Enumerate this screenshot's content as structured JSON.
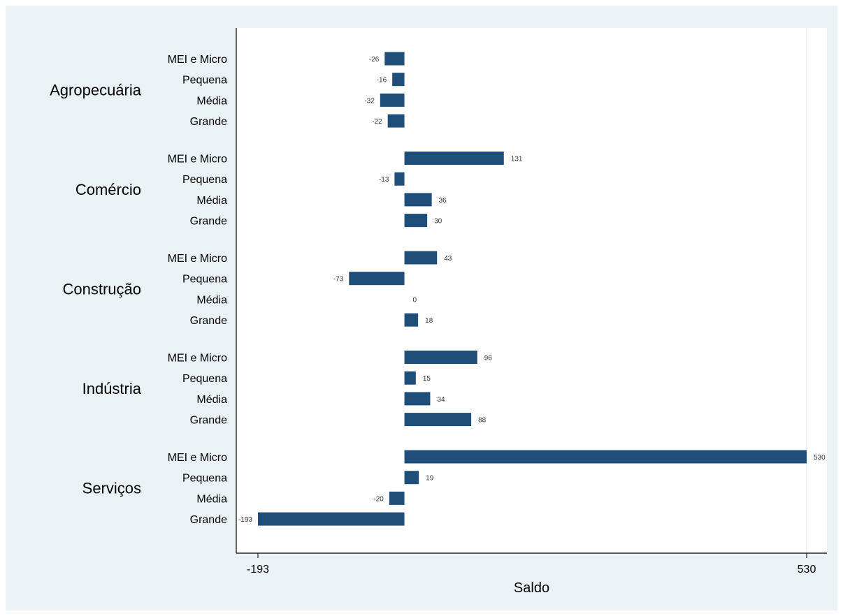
{
  "chart_data": {
    "type": "bar",
    "orientation": "horizontal",
    "xlabel": "Saldo",
    "xlim": [
      -193,
      530
    ],
    "xticks": [
      -193,
      530
    ],
    "subcategories": [
      "MEI e Micro",
      "Pequena",
      "Média",
      "Grande"
    ],
    "groups": [
      {
        "name": "Agropecuária",
        "values": [
          -26,
          -16,
          -32,
          -22
        ]
      },
      {
        "name": "Comércio",
        "values": [
          131,
          -13,
          36,
          30
        ]
      },
      {
        "name": "Construção",
        "values": [
          43,
          -73,
          0,
          18
        ]
      },
      {
        "name": "Indústria",
        "values": [
          96,
          15,
          34,
          88
        ]
      },
      {
        "name": "Serviços",
        "values": [
          530,
          19,
          -20,
          -193
        ]
      }
    ],
    "bar_color": "#1f4e79",
    "plot_background": "#ffffff",
    "outer_background": "#eaf2f3",
    "grid": false
  }
}
